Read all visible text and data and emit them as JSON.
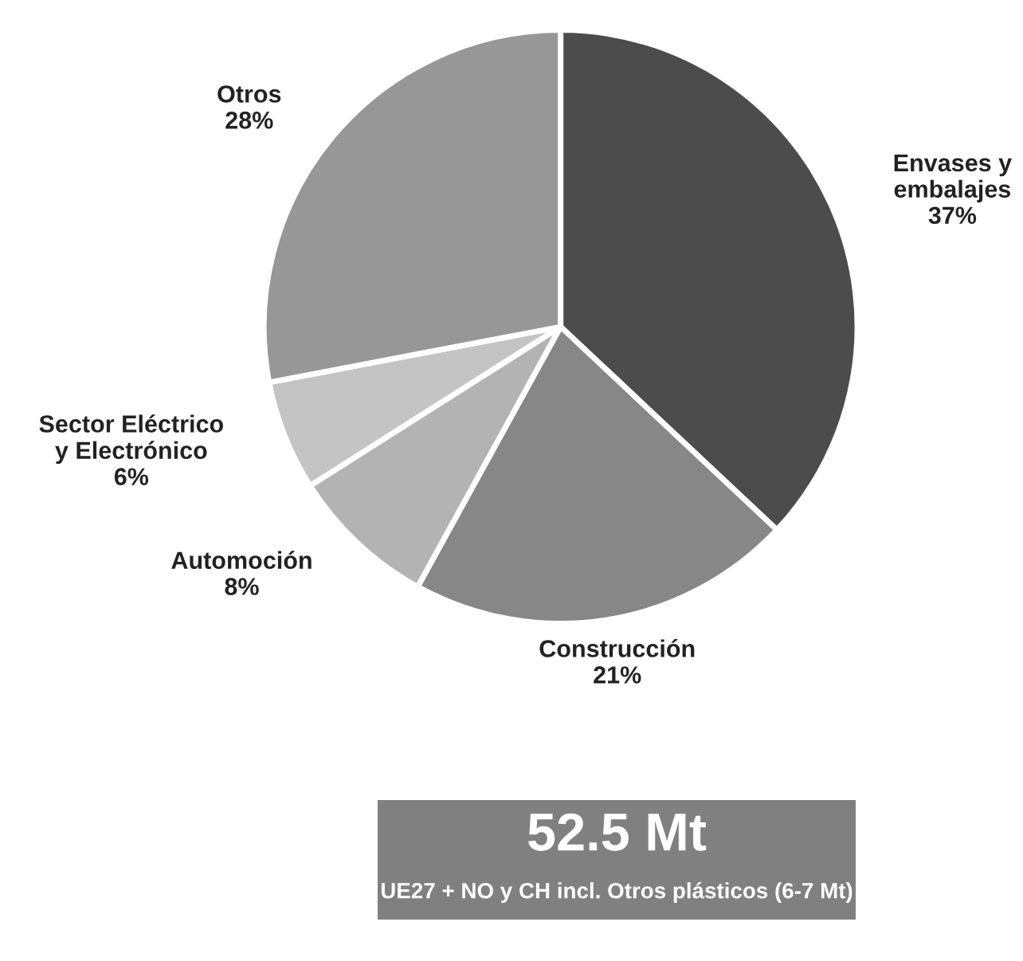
{
  "chart_data": {
    "type": "pie",
    "categories": [
      "Envases y\nembalajes",
      "Construcción",
      "Automoción",
      "Sector Eléctrico\ny Electrónico",
      "Otros"
    ],
    "values": [
      37,
      21,
      8,
      6,
      28
    ],
    "colors": [
      "#4c4c4c",
      "#878787",
      "#b3b3b3",
      "#c4c4c4",
      "#979797"
    ],
    "value_labels": [
      "37%",
      "21%",
      "8%",
      "6%",
      "28%"
    ],
    "annotations": [
      "52.5 Mt",
      "UE27 + NO y CH incl. Otros plásticos (6-7 Mt)"
    ]
  }
}
